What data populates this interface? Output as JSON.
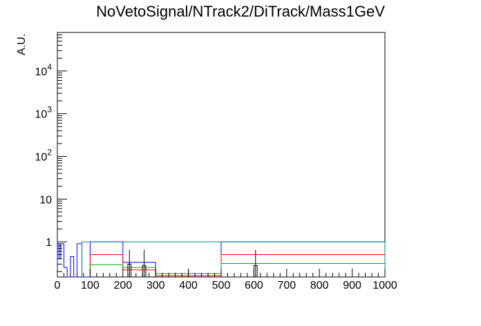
{
  "chart_data": {
    "type": "step-histogram",
    "title": "NoVetoSignal/NTrack2/DiTrack/Mass1GeV",
    "xlabel": "",
    "ylabel": "A.U.",
    "xlim": [
      0,
      1000
    ],
    "ylim": [
      0.15,
      80000
    ],
    "yscale": "log",
    "x_tick_labels": [
      "0",
      "100",
      "200",
      "300",
      "400",
      "500",
      "600",
      "700",
      "800",
      "900",
      "1000"
    ],
    "x_tick_values": [
      0,
      100,
      200,
      300,
      400,
      500,
      600,
      700,
      800,
      900,
      1000
    ],
    "y_tick_labels": [
      {
        "value": 1,
        "base": "1",
        "exp": ""
      },
      {
        "value": 10,
        "base": "10",
        "exp": ""
      },
      {
        "value": 100,
        "base": "10",
        "exp": "2"
      },
      {
        "value": 1000,
        "base": "10",
        "exp": "3"
      },
      {
        "value": 10000,
        "base": "10",
        "exp": "4"
      }
    ],
    "grid": false,
    "legend": "none",
    "series": [
      {
        "color": "#0000ff",
        "edges": [
          0,
          5,
          10,
          20,
          30,
          40,
          50,
          60,
          75,
          100,
          200,
          300,
          500,
          1000
        ],
        "values": [
          0.9,
          0.4,
          0.9,
          0.25,
          0.15,
          0.45,
          0.15,
          0.9,
          0.15,
          1.0,
          0.33,
          0.15,
          1.0
        ]
      },
      {
        "color": "#ff0000",
        "edges": [
          100,
          200,
          300,
          500,
          1000
        ],
        "values": [
          0.5,
          0.22,
          0.16,
          0.5
        ]
      },
      {
        "color": "#00aa00",
        "edges": [
          100,
          200,
          300,
          500,
          1000
        ],
        "values": [
          0.29,
          0.25,
          0.18,
          0.31
        ]
      },
      {
        "color": "#008080",
        "edges": [
          75,
          1000
        ],
        "values": [
          1.0
        ]
      },
      {
        "color": "#000000",
        "edges": [
          215,
          225,
          260,
          270,
          600,
          610
        ],
        "values": [
          0.3,
          0.15,
          0.28,
          0.15,
          0.28
        ],
        "errors": [
          [
            220,
            0.3,
            0.12,
            0.65
          ],
          [
            265,
            0.28,
            0.1,
            0.65
          ],
          [
            605,
            0.28,
            0.1,
            0.65
          ],
          [
            400,
            0.18,
            0.15,
            0.22
          ]
        ]
      }
    ]
  }
}
